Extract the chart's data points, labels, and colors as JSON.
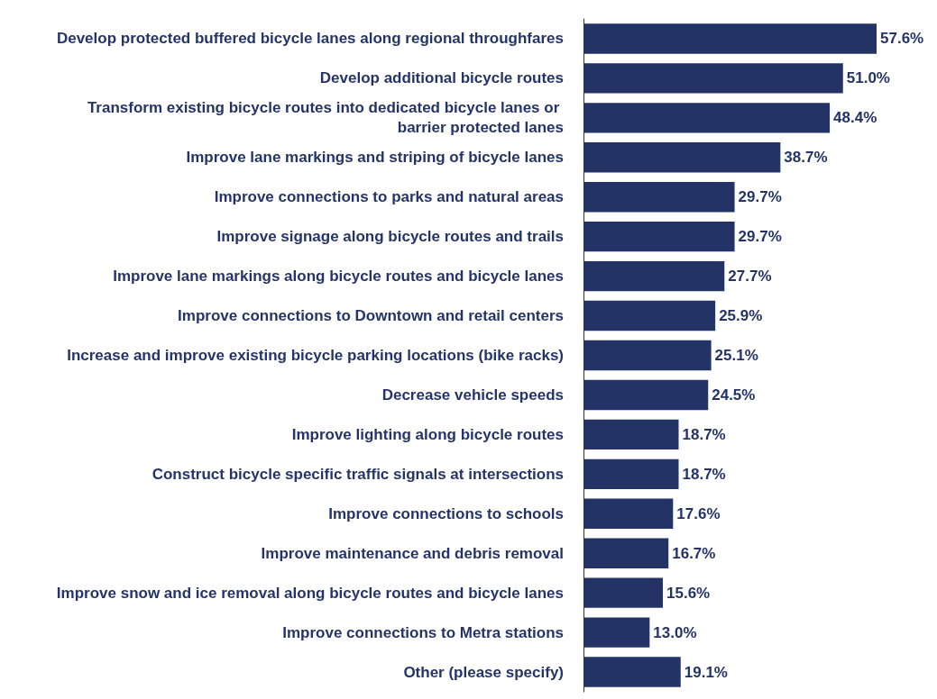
{
  "chart_data": {
    "type": "bar",
    "orientation": "horizontal",
    "data_labels": true,
    "categories": [
      "Develop protected buffered bicycle lanes along regional throughfares",
      "Develop additional bicycle routes",
      "Transform existing bicycle routes into dedicated bicycle lanes or barrier protected lanes",
      "Improve lane markings and striping of bicycle lanes",
      "Improve connections to parks and natural areas",
      "Improve signage along bicycle routes and trails",
      "Improve lane markings along bicycle routes and bicycle lanes",
      "Improve connections to Downtown and retail centers",
      "Increase and improve existing bicycle parking locations (bike racks)",
      "Decrease vehicle speeds",
      "Improve lighting along bicycle routes",
      "Construct bicycle specific traffic signals at intersections",
      "Improve connections to schools",
      "Improve maintenance and debris removal",
      "Improve snow and ice removal along bicycle routes and bicycle lanes",
      "Improve connections to Metra stations",
      "Other (please specify)"
    ],
    "values": [
      57.6,
      51.0,
      48.4,
      38.7,
      29.7,
      29.7,
      27.7,
      25.9,
      25.1,
      24.5,
      18.7,
      18.7,
      17.6,
      16.7,
      15.6,
      13.0,
      19.1
    ],
    "value_labels": [
      "57.6%",
      "51.0%",
      "48.4%",
      "38.7%",
      "29.7%",
      "29.7%",
      "27.7%",
      "25.9%",
      "25.1%",
      "24.5%",
      "18.7%",
      "18.7%",
      "17.6%",
      "16.7%",
      "15.6%",
      "13.0%",
      "19.1%"
    ],
    "color": "#233366"
  }
}
